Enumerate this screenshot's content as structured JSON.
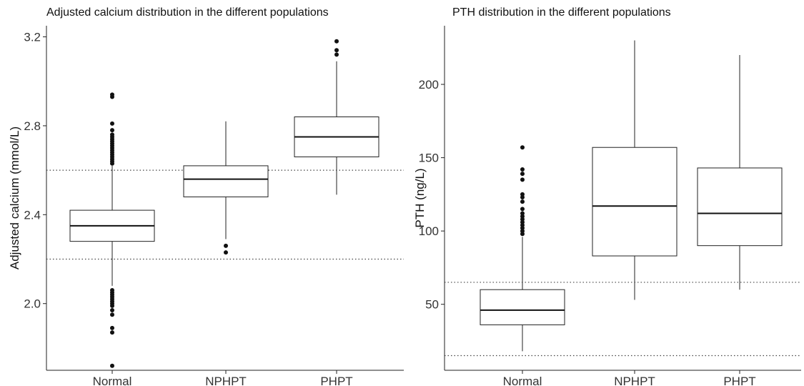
{
  "chart_data": [
    {
      "type": "box",
      "title": "Adjusted calcium distribution in the different populations",
      "xlabel": "",
      "ylabel": "Adjusted calcium (mmol/L)",
      "ylim": [
        1.7,
        3.25
      ],
      "y_ticks": [
        2.0,
        2.4,
        2.8,
        3.2
      ],
      "y_tick_labels": [
        "2.0",
        "2.4",
        "2.8",
        "3.2"
      ],
      "grid": false,
      "reference_lines": [
        2.6,
        2.2
      ],
      "categories": [
        "Normal",
        "NPHPT",
        "PHPT"
      ],
      "boxes": [
        {
          "category": "Normal",
          "whisker_low": 2.08,
          "q1": 2.28,
          "median": 2.35,
          "q3": 2.42,
          "whisker_high": 2.62,
          "outliers": [
            2.94,
            2.93,
            2.81,
            2.78,
            2.76,
            2.75,
            2.74,
            2.73,
            2.72,
            2.71,
            2.7,
            2.69,
            2.68,
            2.67,
            2.66,
            2.65,
            2.64,
            2.63,
            2.06,
            2.05,
            2.04,
            2.03,
            2.02,
            2.01,
            2.0,
            1.99,
            1.97,
            1.95,
            1.89,
            1.87,
            1.72
          ]
        },
        {
          "category": "NPHPT",
          "whisker_low": 2.29,
          "q1": 2.48,
          "median": 2.56,
          "q3": 2.62,
          "whisker_high": 2.82,
          "outliers": [
            2.26,
            2.23
          ]
        },
        {
          "category": "PHPT",
          "whisker_low": 2.49,
          "q1": 2.66,
          "median": 2.75,
          "q3": 2.84,
          "whisker_high": 3.09,
          "outliers": [
            3.18,
            3.14,
            3.12
          ]
        }
      ]
    },
    {
      "type": "box",
      "title": "PTH distribution in the different populations",
      "xlabel": "",
      "ylabel": "PTH (ng/L)",
      "ylim": [
        5,
        240
      ],
      "y_ticks": [
        50,
        100,
        150,
        200
      ],
      "y_tick_labels": [
        "50",
        "100",
        "150",
        "200"
      ],
      "grid": false,
      "reference_lines": [
        65,
        15
      ],
      "categories": [
        "Normal",
        "NPHPT",
        "PHPT"
      ],
      "boxes": [
        {
          "category": "Normal",
          "whisker_low": 18,
          "q1": 36,
          "median": 46,
          "q3": 60,
          "whisker_high": 96,
          "outliers": [
            157,
            142,
            139,
            135,
            125,
            123,
            120,
            115,
            112,
            110,
            108,
            106,
            104,
            102,
            100,
            98
          ]
        },
        {
          "category": "NPHPT",
          "whisker_low": 53,
          "q1": 83,
          "median": 117,
          "q3": 157,
          "whisker_high": 230,
          "outliers": []
        },
        {
          "category": "PHPT",
          "whisker_low": 60,
          "q1": 90,
          "median": 112,
          "q3": 143,
          "whisker_high": 220,
          "outliers": []
        }
      ]
    }
  ]
}
